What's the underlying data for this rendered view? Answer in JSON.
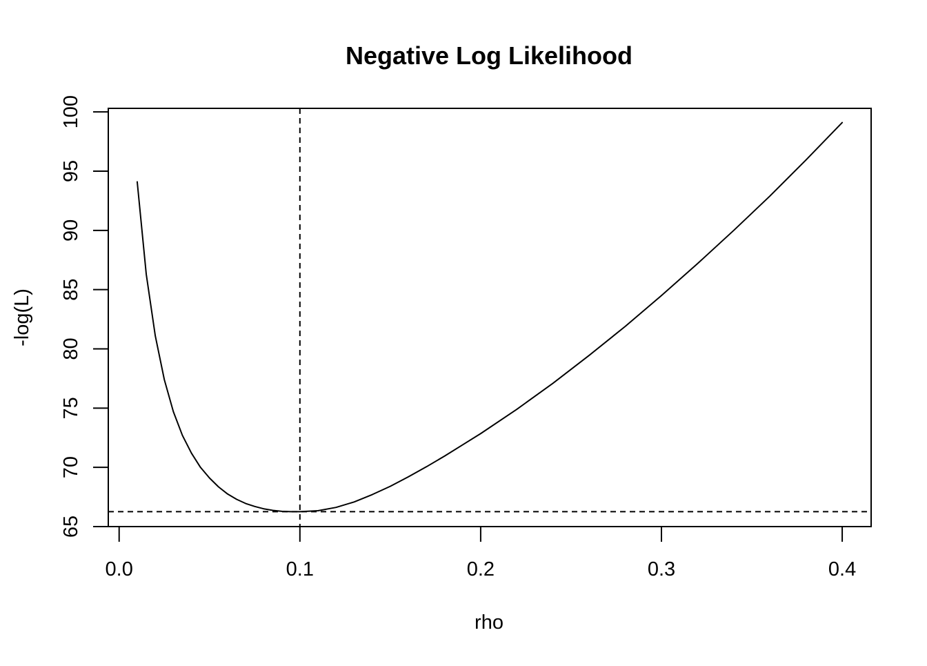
{
  "chart_data": {
    "type": "line",
    "title": "Negative Log Likelihood",
    "xlabel": "rho",
    "ylabel": "-log(L)",
    "xlim": [
      -0.006,
      0.416
    ],
    "ylim": [
      65,
      100.3
    ],
    "x_ticks": [
      "0.0",
      "0.1",
      "0.2",
      "0.3",
      "0.4"
    ],
    "y_ticks": [
      "65",
      "70",
      "75",
      "80",
      "85",
      "90",
      "95",
      "100"
    ],
    "grid": false,
    "series": [
      {
        "x": [
          0.01,
          0.015,
          0.02,
          0.025,
          0.03,
          0.035,
          0.04,
          0.045,
          0.05,
          0.055,
          0.06,
          0.065,
          0.07,
          0.075,
          0.08,
          0.085,
          0.09,
          0.095,
          0.1,
          0.11,
          0.12,
          0.13,
          0.14,
          0.15,
          0.16,
          0.17,
          0.18,
          0.19,
          0.2,
          0.22,
          0.24,
          0.26,
          0.28,
          0.3,
          0.32,
          0.34,
          0.36,
          0.38,
          0.4
        ],
        "y": [
          94.1,
          86.3,
          81.1,
          77.4,
          74.7,
          72.7,
          71.2,
          70.0,
          69.1,
          68.35,
          67.75,
          67.3,
          66.95,
          66.7,
          66.5,
          66.37,
          66.29,
          66.26,
          66.26,
          66.34,
          66.62,
          67.08,
          67.7,
          68.4,
          69.2,
          70.05,
          70.95,
          71.9,
          72.85,
          74.9,
          77.1,
          79.45,
          81.9,
          84.5,
          87.2,
          90.0,
          92.9,
          95.95,
          99.1
        ],
        "style": "solid",
        "color": "#000000"
      }
    ],
    "reference_lines": [
      {
        "orientation": "vertical",
        "x": 0.1,
        "style": "dashed"
      },
      {
        "orientation": "horizontal",
        "y": 66.26,
        "style": "dashed"
      }
    ]
  }
}
